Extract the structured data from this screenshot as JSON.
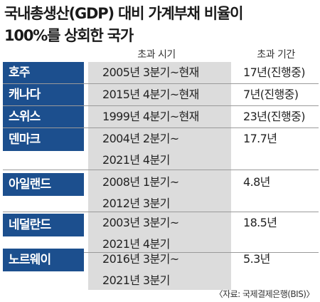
{
  "title_line1": "국내총생산(GDP) 대비 가계부채 비율이",
  "title_line2": "100%를 상회한 국가",
  "headers": {
    "period": "초과 시기",
    "duration": "초과 기간"
  },
  "rows": [
    {
      "country": "호주",
      "period": [
        "2005년 3분기~현재"
      ],
      "duration": "17년(진행중)"
    },
    {
      "country": "캐나다",
      "period": [
        "2015년 4분기~현재"
      ],
      "duration": "7년(진행중)"
    },
    {
      "country": "스위스",
      "period": [
        "1999년 4분기~현재"
      ],
      "duration": "23년(진행중)"
    },
    {
      "country": "덴마크",
      "period": [
        "2004년 2분기~",
        "2021년 4분기"
      ],
      "duration": "17.7년"
    },
    {
      "country": "아일랜드",
      "period": [
        "2008년 1분기~",
        "2012년 3분기"
      ],
      "duration": "4.8년"
    },
    {
      "country": "네덜란드",
      "period": [
        "2003년 3분기~",
        "2021년 4분기"
      ],
      "duration": "18.5년"
    },
    {
      "country": "노르웨이",
      "period": [
        "2016년 3분기~",
        "2021년 3분기"
      ],
      "duration": "5.3년"
    }
  ],
  "source": "〈자료: 국제결제은행(BIS)〉"
}
